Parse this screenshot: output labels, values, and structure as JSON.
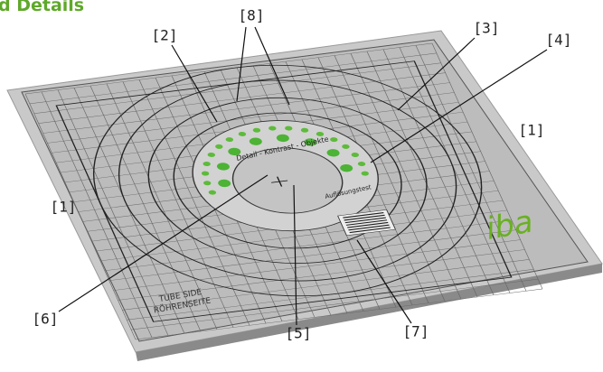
{
  "header": {
    "title": "d Details"
  },
  "callouts": [
    "[8]",
    "[2]",
    "[3]",
    "[4]",
    "[1]",
    "[1]",
    "[6]",
    "[5]",
    "[7]"
  ],
  "plate": {
    "tube_side": "TUBE SIDE",
    "tube_side_de": "RÖHRENSEITE",
    "logo": "iba",
    "resolution_test": "Auflösungstest",
    "contrast_objects": "Detail - Kontrast - Objekte"
  }
}
